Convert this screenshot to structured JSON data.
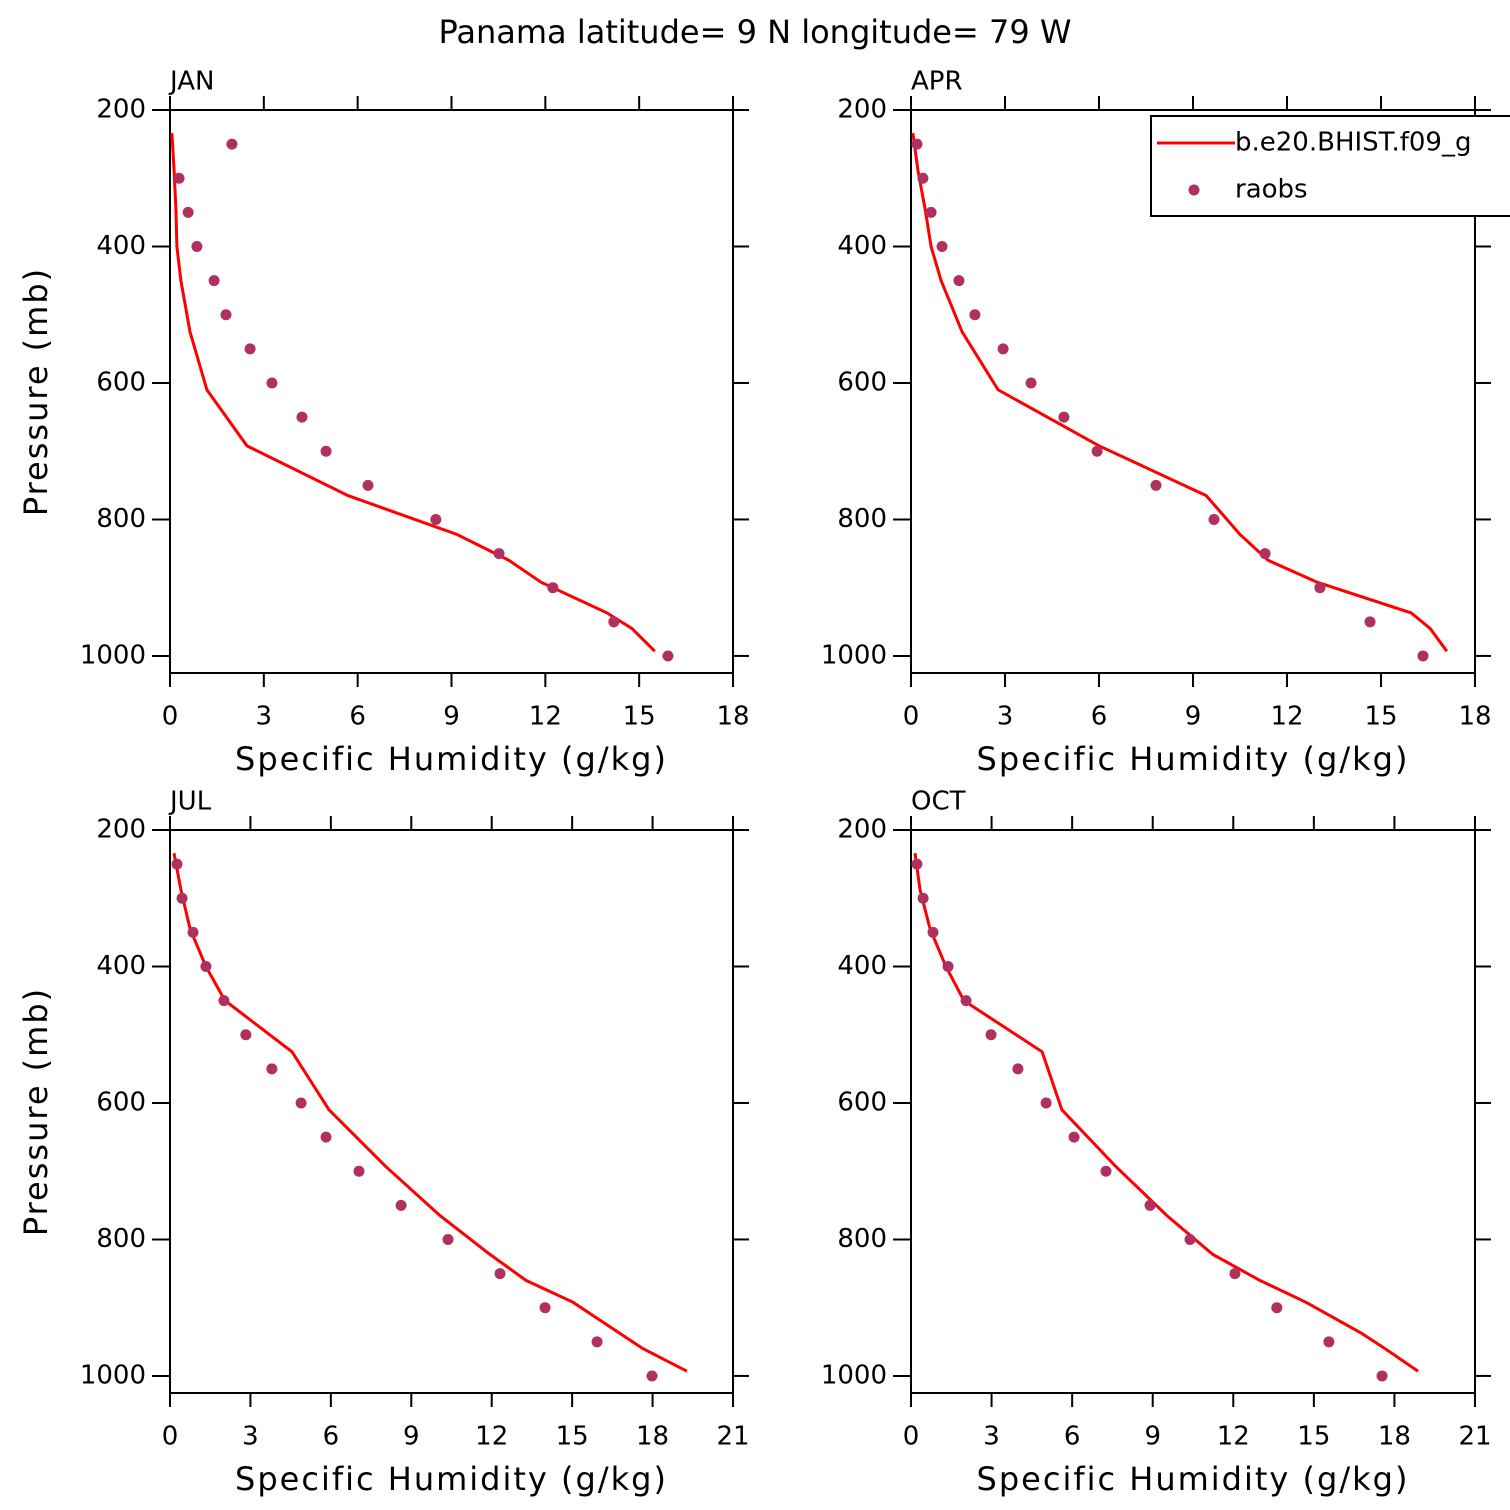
{
  "title": "Panama  latitude= 9 N longitude= 79 W",
  "chart_data": [
    {
      "type": "line",
      "title": "JAN",
      "xlabel": "Specific Humidity (g/kg)",
      "ylabel": "Pressure (mb)",
      "xlim": [
        0,
        18
      ],
      "xticks": [
        0,
        3,
        6,
        9,
        12,
        15,
        18
      ],
      "ylim": [
        1025,
        200
      ],
      "yticks": [
        200,
        400,
        600,
        800,
        1000
      ],
      "series": [
        {
          "name": "b.e20.BHIST.f09_g",
          "color": "#ff0000",
          "mode": "line",
          "x": [
            0.06,
            0.13,
            0.19,
            0.22,
            0.35,
            0.64,
            1.18,
            2.46,
            5.69,
            9.18,
            10.84,
            11.86,
            13.97,
            14.77,
            15.5
          ],
          "y": [
            234,
            288,
            345,
            400,
            450,
            525,
            610,
            692,
            765,
            822,
            860,
            892,
            937,
            960,
            993
          ]
        },
        {
          "name": "raobs",
          "color": "#b03060",
          "mode": "markers",
          "x": [
            1.98,
            0.29,
            0.58,
            0.86,
            1.41,
            1.79,
            2.56,
            3.26,
            4.22,
            4.99,
            6.33,
            8.5,
            10.52,
            12.24,
            14.19,
            15.92
          ],
          "y": [
            250,
            300,
            350,
            400,
            450,
            500,
            550,
            600,
            650,
            700,
            750,
            800,
            850,
            900,
            950,
            1000
          ]
        }
      ]
    },
    {
      "type": "line",
      "title": "APR",
      "xlabel": "Specific Humidity (g/kg)",
      "legend": "upper right",
      "xlim": [
        0,
        18
      ],
      "xticks": [
        0,
        3,
        6,
        9,
        12,
        15,
        18
      ],
      "ylim": [
        1025,
        200
      ],
      "yticks": [
        200,
        400,
        600,
        800,
        1000
      ],
      "series": [
        {
          "name": "b.e20.BHIST.f09_g",
          "color": "#ff0000",
          "mode": "line",
          "x": [
            0.06,
            0.22,
            0.45,
            0.64,
            0.96,
            1.63,
            2.78,
            6.0,
            9.42,
            10.5,
            11.4,
            12.96,
            15.96,
            16.57,
            17.1
          ],
          "y": [
            234,
            288,
            345,
            400,
            450,
            525,
            610,
            692,
            765,
            822,
            860,
            892,
            937,
            960,
            993
          ]
        },
        {
          "name": "raobs",
          "color": "#b03060",
          "mode": "markers",
          "x": [
            0.19,
            0.38,
            0.64,
            0.99,
            1.53,
            2.04,
            2.94,
            3.83,
            4.88,
            5.94,
            7.82,
            9.67,
            11.3,
            13.05,
            14.65,
            16.34
          ],
          "y": [
            250,
            300,
            350,
            400,
            450,
            500,
            550,
            600,
            650,
            700,
            750,
            800,
            850,
            900,
            950,
            1000
          ]
        }
      ]
    },
    {
      "type": "line",
      "title": "JUL",
      "xlabel": "Specific Humidity (g/kg)",
      "ylabel": "Pressure (mb)",
      "xlim": [
        0,
        21
      ],
      "xticks": [
        0,
        3,
        6,
        9,
        12,
        15,
        18,
        21
      ],
      "ylim": [
        1025,
        200
      ],
      "yticks": [
        200,
        400,
        600,
        800,
        1000
      ],
      "series": [
        {
          "name": "b.e20.BHIST.f09_g",
          "color": "#ff0000",
          "mode": "line",
          "x": [
            0.15,
            0.41,
            0.75,
            1.34,
            2.05,
            4.55,
            5.93,
            8.02,
            10.07,
            11.94,
            13.28,
            15.03,
            16.75,
            17.64,
            19.28
          ],
          "y": [
            234,
            288,
            345,
            400,
            450,
            525,
            610,
            692,
            765,
            822,
            860,
            892,
            937,
            960,
            993
          ]
        },
        {
          "name": "raobs",
          "color": "#b03060",
          "mode": "markers",
          "x": [
            0.26,
            0.45,
            0.86,
            1.34,
            2.01,
            2.83,
            3.8,
            4.89,
            5.82,
            7.05,
            8.62,
            10.37,
            12.31,
            13.99,
            15.93,
            17.98
          ],
          "y": [
            250,
            300,
            350,
            400,
            450,
            500,
            550,
            600,
            650,
            700,
            750,
            800,
            850,
            900,
            950,
            1000
          ]
        }
      ]
    },
    {
      "type": "line",
      "title": "OCT",
      "xlabel": "Specific Humidity (g/kg)",
      "xlim": [
        0,
        21
      ],
      "xticks": [
        0,
        3,
        6,
        9,
        12,
        15,
        18,
        21
      ],
      "ylim": [
        1025,
        200
      ],
      "yticks": [
        200,
        400,
        600,
        800,
        1000
      ],
      "series": [
        {
          "name": "b.e20.BHIST.f09_g",
          "color": "#ff0000",
          "mode": "line",
          "x": [
            0.15,
            0.34,
            0.71,
            1.3,
            1.97,
            4.88,
            5.62,
            7.6,
            9.53,
            11.24,
            12.99,
            14.7,
            16.75,
            17.65,
            18.88
          ],
          "y": [
            234,
            288,
            345,
            400,
            450,
            525,
            610,
            692,
            765,
            822,
            860,
            892,
            937,
            960,
            993
          ]
        },
        {
          "name": "raobs",
          "color": "#b03060",
          "mode": "markers",
          "x": [
            0.22,
            0.45,
            0.82,
            1.38,
            2.05,
            2.98,
            3.98,
            5.03,
            6.07,
            7.26,
            8.9,
            10.39,
            12.06,
            13.62,
            15.56,
            17.54
          ],
          "y": [
            250,
            300,
            350,
            400,
            450,
            500,
            550,
            600,
            650,
            700,
            750,
            800,
            850,
            900,
            950,
            1000
          ]
        }
      ]
    }
  ]
}
